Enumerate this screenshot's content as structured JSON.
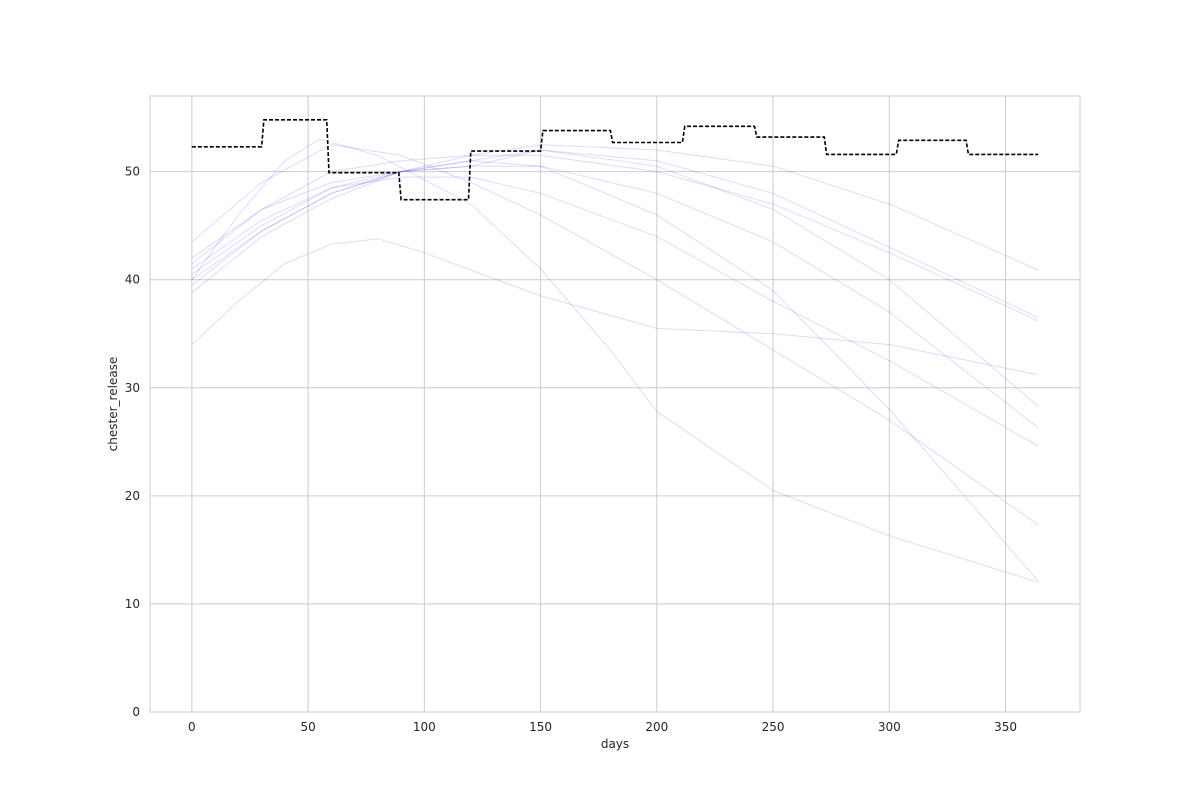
{
  "chart_data": {
    "type": "line",
    "title": "",
    "xlabel": "days",
    "ylabel": "chester_release",
    "xlim": [
      -18,
      382
    ],
    "ylim": [
      0,
      57
    ],
    "xticks": [
      0,
      50,
      100,
      150,
      200,
      250,
      300,
      350
    ],
    "yticks": [
      0,
      10,
      20,
      30,
      40,
      50
    ],
    "grid": true,
    "legend": "none",
    "colors": {
      "series": "#0000ff",
      "step": "#000000",
      "grid": "#cccccc"
    },
    "step_series": {
      "style": "dashed",
      "x": [
        0,
        30,
        31,
        58,
        59,
        89,
        90,
        119,
        120,
        150,
        151,
        180,
        181,
        211,
        212,
        242,
        243,
        272,
        273,
        303,
        304,
        333,
        334,
        364
      ],
      "y": [
        52.3,
        52.3,
        54.8,
        54.8,
        49.9,
        49.9,
        47.4,
        47.4,
        51.9,
        51.9,
        53.8,
        53.8,
        52.7,
        52.7,
        54.2,
        54.2,
        53.2,
        53.2,
        51.6,
        51.6,
        52.9,
        52.9,
        51.6,
        51.6
      ]
    },
    "series": [
      {
        "x": [
          0,
          20,
          40,
          60,
          80,
          100,
          150,
          200,
          250,
          300,
          364
        ],
        "values": [
          34.0,
          38.0,
          41.5,
          43.3,
          43.8,
          42.5,
          38.5,
          35.5,
          35.0,
          34.0,
          31.2
        ]
      },
      {
        "x": [
          0,
          30,
          60,
          90,
          120,
          150,
          200,
          250,
          300,
          364
        ],
        "values": [
          38.8,
          44.0,
          47.5,
          50.0,
          51.0,
          50.5,
          46.0,
          39.0,
          28.0,
          12.1
        ]
      },
      {
        "x": [
          0,
          30,
          60,
          90,
          120,
          150,
          200,
          250,
          300,
          364
        ],
        "values": [
          39.5,
          44.5,
          48.0,
          50.0,
          51.5,
          51.5,
          50.0,
          47.0,
          42.5,
          36.2
        ]
      },
      {
        "x": [
          0,
          30,
          60,
          90,
          120,
          150,
          200,
          250,
          300,
          364
        ],
        "values": [
          40.5,
          45.0,
          48.5,
          50.0,
          50.5,
          50.5,
          48.0,
          43.5,
          37.0,
          26.3
        ]
      },
      {
        "x": [
          0,
          30,
          60,
          90,
          120,
          150,
          200,
          250,
          300,
          364
        ],
        "values": [
          41.0,
          45.5,
          48.5,
          49.5,
          49.5,
          48.0,
          44.0,
          38.0,
          32.5,
          24.6
        ]
      },
      {
        "x": [
          0,
          30,
          60,
          90,
          120,
          150,
          200,
          250,
          300,
          364
        ],
        "values": [
          42.0,
          46.5,
          49.0,
          50.0,
          50.5,
          52.0,
          51.0,
          48.0,
          43.0,
          36.5
        ]
      },
      {
        "x": [
          0,
          30,
          60,
          90,
          120,
          150,
          200,
          250,
          300,
          364
        ],
        "values": [
          43.5,
          49.0,
          52.5,
          51.5,
          49.0,
          46.0,
          40.0,
          33.5,
          27.0,
          17.3
        ]
      },
      {
        "x": [
          0,
          30,
          60,
          90,
          120,
          150,
          200,
          250,
          300,
          364
        ],
        "values": [
          41.5,
          46.5,
          50.0,
          51.0,
          51.5,
          52.5,
          52.0,
          50.5,
          47.0,
          40.9
        ]
      },
      {
        "x": [
          0,
          20,
          40,
          55,
          80,
          120,
          150,
          180,
          200,
          250,
          300,
          364
        ],
        "values": [
          40.0,
          46.0,
          51.0,
          53.0,
          51.5,
          47.0,
          41.0,
          33.5,
          27.8,
          20.5,
          16.3,
          12.0
        ]
      },
      {
        "x": [
          0,
          30,
          60,
          90,
          120,
          150,
          200,
          250,
          300,
          364
        ],
        "values": [
          40.0,
          44.5,
          48.0,
          50.0,
          51.0,
          52.0,
          50.5,
          46.5,
          40.0,
          28.3
        ]
      }
    ]
  }
}
